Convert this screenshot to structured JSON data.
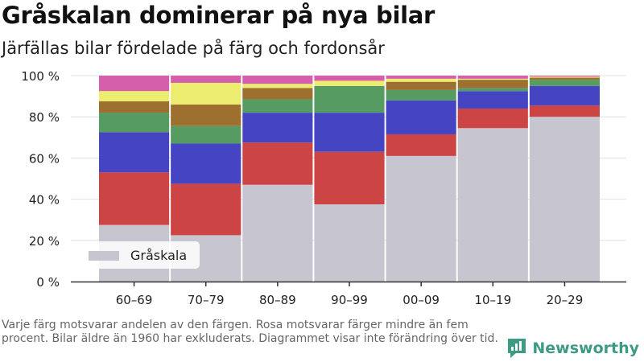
{
  "title": "Gråskalan dominerar på nya bilar",
  "subtitle": "Järfällas bilar fördelade på färg och fordonsår",
  "footnote": "Varje färg motsvarar andelen av den färgen. Rosa motsvarar färger mindre än fem procent. Bilar äldre än 1960 har exkluderats. Diagrammet visar inte förändring över tid.",
  "brand": {
    "name": "Newsworthy",
    "icon": "newsworthy-logo-icon"
  },
  "colors": {
    "grey": "#c7c6d0",
    "red": "#cc4444",
    "blue": "#4545c4",
    "green": "#569b62",
    "brown": "#9e7030",
    "yellow": "#ecec6e",
    "pink": "#d65fac",
    "axis": "#333333",
    "grid": "#e0e0e0",
    "brand": "#3d9b84"
  },
  "chart_data": {
    "type": "bar",
    "stacked": true,
    "categories": [
      "60–69",
      "70–79",
      "80–89",
      "90–99",
      "00–09",
      "10–19",
      "20–29"
    ],
    "ylim": [
      0,
      100
    ],
    "y_ticks": [
      {
        "value": 0,
        "label": "0 %"
      },
      {
        "value": 20,
        "label": "20 %"
      },
      {
        "value": 40,
        "label": "40 %"
      },
      {
        "value": 60,
        "label": "60 %"
      },
      {
        "value": 80,
        "label": "80 %"
      },
      {
        "value": 100,
        "label": "100 %"
      }
    ],
    "series": [
      {
        "name": "Gråskala",
        "color": "grey",
        "values": [
          27.5,
          22.5,
          47,
          37.5,
          61,
          74.5,
          80
        ]
      },
      {
        "color": "red",
        "values": [
          25.5,
          25,
          20.5,
          25.5,
          10.5,
          9.5,
          5.5
        ]
      },
      {
        "color": "blue",
        "values": [
          19.5,
          19.5,
          14.5,
          19,
          16.5,
          8.5,
          9.5
        ]
      },
      {
        "color": "green",
        "values": [
          9.5,
          8.5,
          6.5,
          13,
          5,
          1.5,
          3
        ]
      },
      {
        "color": "brown",
        "values": [
          5.5,
          10.5,
          5.5,
          0,
          4,
          4,
          1
        ]
      },
      {
        "color": "yellow",
        "values": [
          5,
          10.5,
          2,
          2.5,
          1.5,
          0.5,
          0.5
        ]
      },
      {
        "color": "pink",
        "values": [
          7.5,
          3.5,
          4,
          2.5,
          1.5,
          1.5,
          0.5
        ]
      }
    ],
    "legend": {
      "placement": "bottom-left",
      "entries": [
        "Gråskala"
      ]
    },
    "grid": true
  }
}
